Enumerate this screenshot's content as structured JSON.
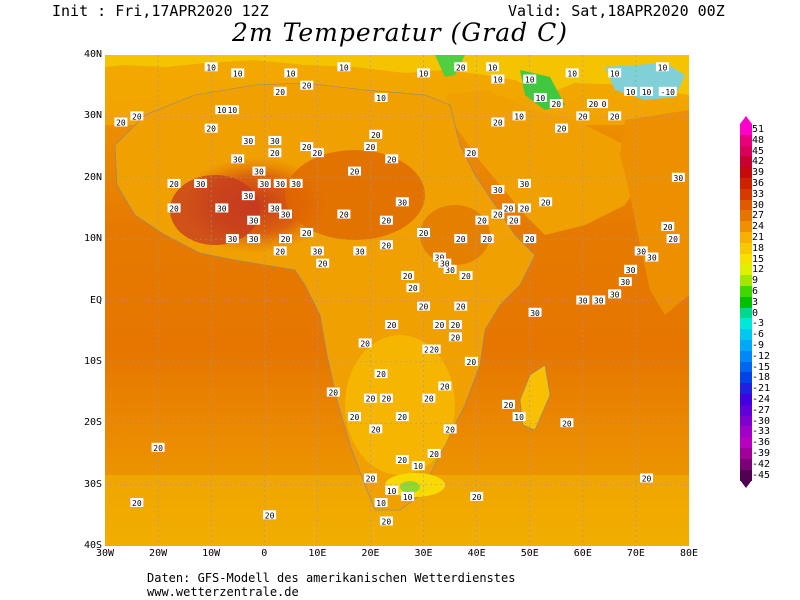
{
  "header": {
    "init": "Init : Fri,17APR2020 12Z",
    "valid": "Valid: Sat,18APR2020 00Z",
    "title": "2m Temperatur (Grad C)"
  },
  "footer": {
    "line1": "Daten: GFS-Modell des amerikanischen Wetterdienstes",
    "line2": "www.wetterzentrale.de"
  },
  "map": {
    "lat_labels": [
      "40N",
      "30N",
      "20N",
      "10N",
      "EQ",
      "10S",
      "20S",
      "30S",
      "40S"
    ],
    "lon_labels": [
      "30W",
      "20W",
      "10W",
      "0",
      "10E",
      "20E",
      "30E",
      "40E",
      "50E",
      "60E",
      "70E",
      "80E"
    ],
    "extent": {
      "lon": [
        -30,
        80
      ],
      "lat": [
        -40,
        40
      ]
    }
  },
  "colorbar": {
    "labels": [
      "51",
      "48",
      "45",
      "42",
      "39",
      "36",
      "33",
      "30",
      "27",
      "24",
      "21",
      "18",
      "15",
      "12",
      "9",
      "6",
      "3",
      "0",
      "-3",
      "-6",
      "-9",
      "-12",
      "-15",
      "-18",
      "-21",
      "-24",
      "-27",
      "-30",
      "-33",
      "-36",
      "-39",
      "-42",
      "-45"
    ],
    "colors": [
      "#ff00c8",
      "#e8007a",
      "#d8005a",
      "#c80032",
      "#c40a0a",
      "#cc2200",
      "#d63a00",
      "#e05a00",
      "#e87400",
      "#f09000",
      "#f8b000",
      "#f8c800",
      "#f8e000",
      "#e0f000",
      "#a0e800",
      "#40d800",
      "#00c000",
      "#00d890",
      "#00e8d8",
      "#00c8f0",
      "#00a8f8",
      "#0088f8",
      "#0066f0",
      "#0044e8",
      "#2020e0",
      "#4000e0",
      "#6000d8",
      "#8000d0",
      "#a000c8",
      "#b800c0",
      "#a00098",
      "#7a0078",
      "#500050"
    ]
  },
  "value_labels": [
    {
      "t": "10",
      "lon": -10,
      "lat": 38
    },
    {
      "t": "10",
      "lon": -5,
      "lat": 37
    },
    {
      "t": "10",
      "lon": 5,
      "lat": 37
    },
    {
      "t": "10",
      "lon": 15,
      "lat": 38
    },
    {
      "t": "10",
      "lon": -8,
      "lat": 31
    },
    {
      "t": "10",
      "lon": -6,
      "lat": 31
    },
    {
      "t": "20",
      "lon": 3,
      "lat": 34
    },
    {
      "t": "20",
      "lon": 8,
      "lat": 35
    },
    {
      "t": "20",
      "lon": -27,
      "lat": 29
    },
    {
      "t": "20",
      "lon": -24,
      "lat": 30
    },
    {
      "t": "10",
      "lon": 22,
      "lat": 33
    },
    {
      "t": "10",
      "lon": 30,
      "lat": 37
    },
    {
      "t": "20",
      "lon": -10,
      "lat": 28
    },
    {
      "t": "30",
      "lon": -3,
      "lat": 26
    },
    {
      "t": "30",
      "lon": 2,
      "lat": 26
    },
    {
      "t": "20",
      "lon": 8,
      "lat": 25
    },
    {
      "t": "20",
      "lon": 10,
      "lat": 24
    },
    {
      "t": "30",
      "lon": -5,
      "lat": 23
    },
    {
      "t": "30",
      "lon": -1,
      "lat": 21
    },
    {
      "t": "20",
      "lon": 2,
      "lat": 24
    },
    {
      "t": "20",
      "lon": 21,
      "lat": 27
    },
    {
      "t": "20",
      "lon": 20,
      "lat": 25
    },
    {
      "t": "20",
      "lon": 24,
      "lat": 23
    },
    {
      "t": "20",
      "lon": 17,
      "lat": 21
    },
    {
      "t": "20",
      "lon": -17,
      "lat": 19
    },
    {
      "t": "30",
      "lon": -12,
      "lat": 19
    },
    {
      "t": "30",
      "lon": -8,
      "lat": 15
    },
    {
      "t": "30",
      "lon": -3,
      "lat": 17
    },
    {
      "t": "30",
      "lon": 0,
      "lat": 19
    },
    {
      "t": "30",
      "lon": 3,
      "lat": 19
    },
    {
      "t": "30",
      "lon": 6,
      "lat": 19
    },
    {
      "t": "20",
      "lon": -17,
      "lat": 15
    },
    {
      "t": "30",
      "lon": -2,
      "lat": 13
    },
    {
      "t": "30",
      "lon": 4,
      "lat": 14
    },
    {
      "t": "30",
      "lon": 2,
      "lat": 15
    },
    {
      "t": "20",
      "lon": 8,
      "lat": 11
    },
    {
      "t": "20",
      "lon": 15,
      "lat": 14
    },
    {
      "t": "20",
      "lon": 23,
      "lat": 13
    },
    {
      "t": "30",
      "lon": 26,
      "lat": 16
    },
    {
      "t": "20",
      "lon": 30,
      "lat": 11
    },
    {
      "t": "30",
      "lon": -6,
      "lat": 10
    },
    {
      "t": "30",
      "lon": -2,
      "lat": 10
    },
    {
      "t": "20",
      "lon": 4,
      "lat": 10
    },
    {
      "t": "20",
      "lon": 3,
      "lat": 8
    },
    {
      "t": "30",
      "lon": 10,
      "lat": 8
    },
    {
      "t": "30",
      "lon": 18,
      "lat": 8
    },
    {
      "t": "20",
      "lon": 11,
      "lat": 6
    },
    {
      "t": "20",
      "lon": 23,
      "lat": 9
    },
    {
      "t": "30",
      "lon": 33,
      "lat": 7
    },
    {
      "t": "20",
      "lon": 37,
      "lat": 10
    },
    {
      "t": "20",
      "lon": 42,
      "lat": 10
    },
    {
      "t": "20",
      "lon": 41,
      "lat": 13
    },
    {
      "t": "20",
      "lon": 44,
      "lat": 14
    },
    {
      "t": "20",
      "lon": 47,
      "lat": 13
    },
    {
      "t": "30",
      "lon": 44,
      "lat": 18
    },
    {
      "t": "20",
      "lon": 46,
      "lat": 15
    },
    {
      "t": "20",
      "lon": 49,
      "lat": 15
    },
    {
      "t": "20",
      "lon": 53,
      "lat": 16
    },
    {
      "t": "30",
      "lon": 49,
      "lat": 19
    },
    {
      "t": "20",
      "lon": 50,
      "lat": 10
    },
    {
      "t": "20",
      "lon": 39,
      "lat": 24
    },
    {
      "t": "20",
      "lon": 44,
      "lat": 29
    },
    {
      "t": "20",
      "lon": 56,
      "lat": 28
    },
    {
      "t": "20",
      "lon": 60,
      "lat": 30
    },
    {
      "t": "20",
      "lon": 66,
      "lat": 30
    },
    {
      "t": "30",
      "lon": 78,
      "lat": 20
    },
    {
      "t": "20",
      "lon": 77,
      "lat": 10
    },
    {
      "t": "20",
      "lon": 76,
      "lat": 12
    },
    {
      "t": "30",
      "lon": 71,
      "lat": 8
    },
    {
      "t": "30",
      "lon": 73,
      "lat": 7
    },
    {
      "t": "30",
      "lon": 69,
      "lat": 5
    },
    {
      "t": "30",
      "lon": 68,
      "lat": 3
    },
    {
      "t": "30",
      "lon": 66,
      "lat": 1
    },
    {
      "t": "30",
      "lon": 63,
      "lat": 0
    },
    {
      "t": "30",
      "lon": 60,
      "lat": 0
    },
    {
      "t": "30",
      "lon": 51,
      "lat": -2
    },
    {
      "t": "20",
      "lon": 38,
      "lat": 4
    },
    {
      "t": "20",
      "lon": 37,
      "lat": -1
    },
    {
      "t": "20",
      "lon": 27,
      "lat": 4
    },
    {
      "t": "20",
      "lon": 28,
      "lat": 2
    },
    {
      "t": "30",
      "lon": 35,
      "lat": 5
    },
    {
      "t": "30",
      "lon": 34,
      "lat": 6
    },
    {
      "t": "20",
      "lon": 30,
      "lat": -1
    },
    {
      "t": "20",
      "lon": 24,
      "lat": -4
    },
    {
      "t": "20",
      "lon": 33,
      "lat": -4
    },
    {
      "t": "20",
      "lon": 36,
      "lat": -4
    },
    {
      "t": "20",
      "lon": 19,
      "lat": -7
    },
    {
      "t": "20",
      "lon": 31,
      "lat": -8
    },
    {
      "t": "20",
      "lon": 32,
      "lat": -8
    },
    {
      "t": "20",
      "lon": 36,
      "lat": -6
    },
    {
      "t": "20",
      "lon": 39,
      "lat": -10
    },
    {
      "t": "20",
      "lon": 22,
      "lat": -12
    },
    {
      "t": "20",
      "lon": 34,
      "lat": -14
    },
    {
      "t": "20",
      "lon": 13,
      "lat": -15
    },
    {
      "t": "20",
      "lon": 20,
      "lat": -16
    },
    {
      "t": "20",
      "lon": 23,
      "lat": -16
    },
    {
      "t": "20",
      "lon": 31,
      "lat": -16
    },
    {
      "t": "20",
      "lon": 17,
      "lat": -19
    },
    {
      "t": "20",
      "lon": 26,
      "lat": -19
    },
    {
      "t": "20",
      "lon": 35,
      "lat": -21
    },
    {
      "t": "20",
      "lon": 46,
      "lat": -17
    },
    {
      "t": "10",
      "lon": 48,
      "lat": -19
    },
    {
      "t": "20",
      "lon": 57,
      "lat": -20
    },
    {
      "t": "20",
      "lon": 32,
      "lat": -25
    },
    {
      "t": "20",
      "lon": 21,
      "lat": -21
    },
    {
      "t": "20",
      "lon": 26,
      "lat": -26
    },
    {
      "t": "10",
      "lon": 29,
      "lat": -27
    },
    {
      "t": "20",
      "lon": 20,
      "lat": -29
    },
    {
      "t": "10",
      "lon": 24,
      "lat": -31
    },
    {
      "t": "10",
      "lon": 27,
      "lat": -32
    },
    {
      "t": "10",
      "lon": 22,
      "lat": -33
    },
    {
      "t": "20",
      "lon": 23,
      "lat": -36
    },
    {
      "t": "20",
      "lon": 40,
      "lat": -32
    },
    {
      "t": "20",
      "lon": 72,
      "lat": -29
    },
    {
      "t": "20",
      "lon": -20,
      "lat": -24
    },
    {
      "t": "20",
      "lon": -24,
      "lat": -33
    },
    {
      "t": "20",
      "lon": 1,
      "lat": -35
    },
    {
      "t": "20",
      "lon": 37,
      "lat": 38
    },
    {
      "t": "10",
      "lon": 43,
      "lat": 38
    },
    {
      "t": "10",
      "lon": 44,
      "lat": 36
    },
    {
      "t": "10",
      "lon": 50,
      "lat": 36
    },
    {
      "t": "10",
      "lon": 52,
      "lat": 33
    },
    {
      "t": "10",
      "lon": 58,
      "lat": 37
    },
    {
      "t": "10",
      "lon": 66,
      "lat": 37
    },
    {
      "t": "10",
      "lon": 75,
      "lat": 38
    },
    {
      "t": "10",
      "lon": 69,
      "lat": 34
    },
    {
      "t": "10",
      "lon": 72,
      "lat": 34
    },
    {
      "t": "-10",
      "lon": 76,
      "lat": 34
    },
    {
      "t": "0",
      "lon": 64,
      "lat": 32
    },
    {
      "t": "20",
      "lon": 62,
      "lat": 32
    },
    {
      "t": "20",
      "lon": 55,
      "lat": 32
    },
    {
      "t": "10",
      "lon": 48,
      "lat": 30
    }
  ]
}
